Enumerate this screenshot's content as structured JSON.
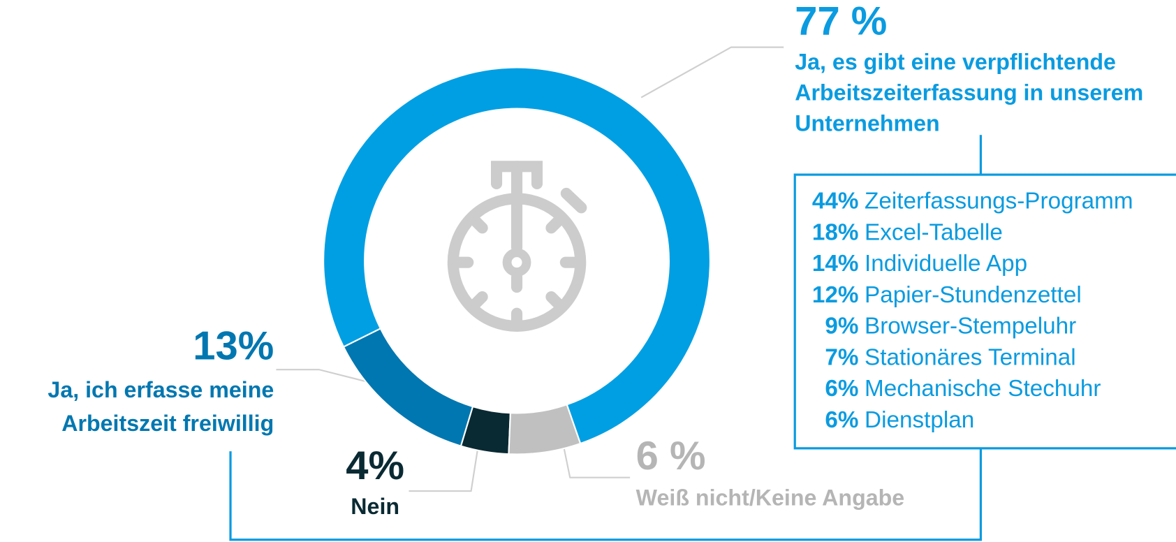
{
  "chart_data": {
    "type": "donut",
    "categories": [
      "Ja, es gibt eine verpflichtende Arbeitszeiterfassung in unserem Unternehmen",
      "Ja, ich erfasse meine Arbeitszeit freiwillig",
      "Nein",
      "Weiß nicht/Keine Angabe"
    ],
    "label_lines": [
      [
        "Ja, es gibt eine verpflichtende",
        "Arbeitszeiterfassung in unserem",
        "Unternehmen"
      ],
      [
        "Ja, ich erfasse meine",
        "Arbeitszeit freiwillig"
      ],
      [
        "Nein"
      ],
      [
        "Weiß nicht/Keine Angabe"
      ]
    ],
    "values": [
      77,
      13,
      4,
      6
    ],
    "value_labels": [
      "77 %",
      "13%",
      "4%",
      "6 %"
    ],
    "colors": [
      "#009fe3",
      "#0077b0",
      "#0a2a33",
      "#c0c0c0"
    ],
    "label_colors": [
      "#0a9be0",
      "#0077b0",
      "#0a2a33",
      "#b5b5b5"
    ],
    "breakdown": {
      "categories": [
        "Zeiterfassungs-Programm",
        "Excel-Tabelle",
        "Individuelle App",
        "Papier-Stundenzettel",
        "Browser-Stempeluhr",
        "Stationäres Terminal",
        "Mechanische Stechuhr",
        "Dienstplan"
      ],
      "values": [
        44,
        18,
        14,
        12,
        9,
        7,
        6,
        6
      ],
      "value_labels": [
        "44%",
        "18%",
        "14%",
        "12%",
        "9%",
        "7%",
        "6%",
        "6%"
      ]
    }
  }
}
